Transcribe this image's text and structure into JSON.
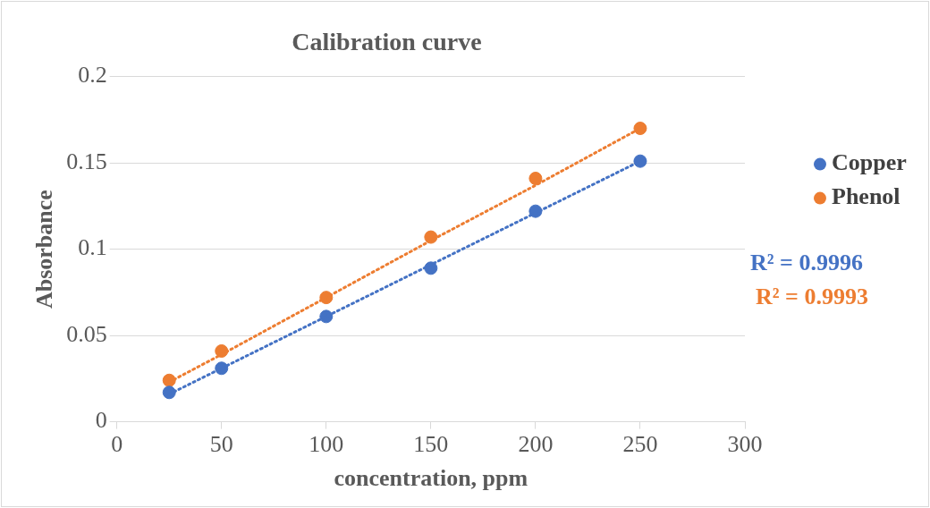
{
  "chart_data": {
    "type": "scatter",
    "title": "Calibration curve",
    "xlabel": "concentration, ppm",
    "ylabel": "Absorbance",
    "x": [
      25,
      50,
      100,
      150,
      200,
      250
    ],
    "series": [
      {
        "name": "Copper",
        "color": "#4472c4",
        "values": [
          0.017,
          0.031,
          0.061,
          0.089,
          0.122,
          0.151
        ]
      },
      {
        "name": "Phenol",
        "color": "#ed7d31",
        "values": [
          0.024,
          0.041,
          0.072,
          0.107,
          0.141,
          0.17
        ]
      },
      {
        "type": "line",
        "color": "#4472c4",
        "values": [
          0.016,
          0.031,
          0.061,
          0.091,
          0.121,
          0.151
        ],
        "line_style": "dotted",
        "marker": "none"
      },
      {
        "type": "line",
        "color": "#ed7d31",
        "values": [
          0.023,
          0.039,
          0.072,
          0.105,
          0.137,
          0.17
        ],
        "line_style": "dotted",
        "marker": "none"
      }
    ],
    "xlim": [
      0,
      300
    ],
    "xticks": [
      0,
      50,
      100,
      150,
      200,
      250,
      300
    ],
    "ylim": [
      0,
      0.2
    ],
    "yticks": [
      0,
      0.05,
      0.1,
      0.15,
      0.2
    ],
    "grid": "y",
    "legend": "right",
    "marker": "circle",
    "annotations": [
      "R² = 0.9996",
      "R² = 0.9993"
    ]
  }
}
